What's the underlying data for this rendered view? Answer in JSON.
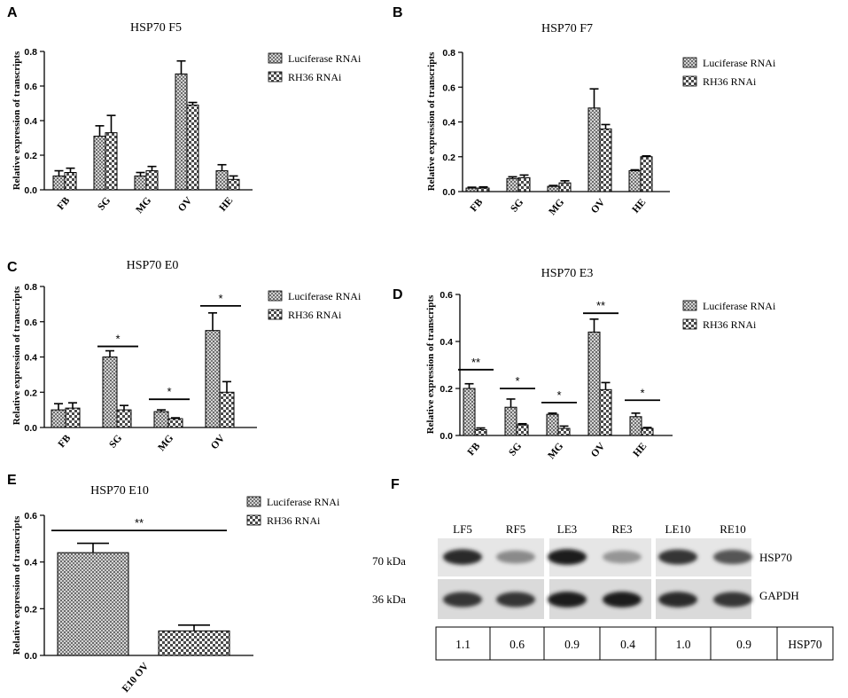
{
  "legend": {
    "series": [
      "Luciferase RNAi",
      "RH36 RNAi"
    ]
  },
  "y_axis_label": "Relative expression of transcripts",
  "chart_data": [
    {
      "panel": "A",
      "type": "bar",
      "title": "HSP70 F5",
      "categories": [
        "FB",
        "SG",
        "MG",
        "OV",
        "HE"
      ],
      "ylim": [
        0,
        0.8
      ],
      "yticks": [
        "0.0",
        "0.2",
        "0.4",
        "0.6",
        "0.8"
      ],
      "series": [
        {
          "name": "Luciferase RNAi",
          "values": [
            0.08,
            0.31,
            0.08,
            0.67,
            0.11
          ],
          "errors": [
            0.03,
            0.06,
            0.02,
            0.075,
            0.035
          ]
        },
        {
          "name": "RH36 RNAi",
          "values": [
            0.1,
            0.33,
            0.11,
            0.49,
            0.06
          ],
          "errors": [
            0.025,
            0.1,
            0.025,
            0.015,
            0.02
          ]
        }
      ],
      "significance": []
    },
    {
      "panel": "B",
      "type": "bar",
      "title": "HSP70 F7",
      "categories": [
        "FB",
        "SG",
        "MG",
        "OV",
        "HE"
      ],
      "ylim": [
        0,
        0.8
      ],
      "yticks": [
        "0.0",
        "0.2",
        "0.4",
        "0.6",
        "0.8"
      ],
      "series": [
        {
          "name": "Luciferase RNAi",
          "values": [
            0.02,
            0.075,
            0.03,
            0.48,
            0.12
          ],
          "errors": [
            0.005,
            0.01,
            0.005,
            0.11,
            0.005
          ]
        },
        {
          "name": "RH36 RNAi",
          "values": [
            0.02,
            0.08,
            0.05,
            0.36,
            0.2
          ],
          "errors": [
            0.007,
            0.015,
            0.012,
            0.025,
            0.005
          ]
        }
      ],
      "significance": []
    },
    {
      "panel": "C",
      "type": "bar",
      "title": "HSP70 E0",
      "categories": [
        "FB",
        "SG",
        "MG",
        "OV"
      ],
      "ylim": [
        0,
        0.8
      ],
      "yticks": [
        "0.0",
        "0.2",
        "0.4",
        "0.6",
        "0.8"
      ],
      "series": [
        {
          "name": "Luciferase RNAi",
          "values": [
            0.1,
            0.4,
            0.09,
            0.55
          ],
          "errors": [
            0.035,
            0.035,
            0.01,
            0.1
          ]
        },
        {
          "name": "RH36 RNAi",
          "values": [
            0.11,
            0.1,
            0.05,
            0.2
          ],
          "errors": [
            0.03,
            0.025,
            0.005,
            0.06
          ]
        }
      ],
      "significance": [
        {
          "category": 1,
          "label": "*",
          "y": 0.46
        },
        {
          "category": 2,
          "label": "*",
          "y": 0.16
        },
        {
          "category": 3,
          "label": "*",
          "y": 0.69
        }
      ]
    },
    {
      "panel": "D",
      "type": "bar",
      "title": "HSP70 E3",
      "categories": [
        "FB",
        "SG",
        "MG",
        "OV",
        "HE"
      ],
      "ylim": [
        0,
        0.6
      ],
      "yticks": [
        "0.0",
        "0.2",
        "0.4",
        "0.6"
      ],
      "series": [
        {
          "name": "Luciferase RNAi",
          "values": [
            0.2,
            0.12,
            0.09,
            0.44,
            0.08
          ],
          "errors": [
            0.02,
            0.035,
            0.005,
            0.055,
            0.015
          ]
        },
        {
          "name": "RH36 RNAi",
          "values": [
            0.025,
            0.045,
            0.03,
            0.195,
            0.03
          ],
          "errors": [
            0.007,
            0.005,
            0.01,
            0.03,
            0.004
          ]
        }
      ],
      "significance": [
        {
          "category": 0,
          "label": "**",
          "y": 0.28
        },
        {
          "category": 1,
          "label": "*",
          "y": 0.2
        },
        {
          "category": 2,
          "label": "*",
          "y": 0.14
        },
        {
          "category": 3,
          "label": "**",
          "y": 0.52
        },
        {
          "category": 4,
          "label": "*",
          "y": 0.15
        }
      ]
    },
    {
      "panel": "E",
      "type": "bar",
      "title": "HSP70 E10",
      "categories": [
        "E10 OV"
      ],
      "ylim": [
        0,
        0.6
      ],
      "yticks": [
        "0.0",
        "0.2",
        "0.4",
        "0.6"
      ],
      "series": [
        {
          "name": "Luciferase RNAi",
          "values": [
            0.44
          ],
          "errors": [
            0.04
          ]
        },
        {
          "name": "RH36 RNAi",
          "values": [
            0.105
          ],
          "errors": [
            0.025
          ]
        }
      ],
      "significance": [
        {
          "category": 0,
          "label": "**",
          "y": 0.535
        }
      ]
    }
  ],
  "western_blot": {
    "panel": "F",
    "lanes": [
      "LF5",
      "RF5",
      "LE3",
      "RE3",
      "LE10",
      "RE10"
    ],
    "markers": [
      "70 kDa",
      "36 kDa"
    ],
    "proteins": [
      "HSP70",
      "GAPDH"
    ],
    "quantification": [
      "1.1",
      "0.6",
      "0.9",
      "0.4",
      "1.0",
      "0.9"
    ],
    "quantification_label": "HSP70",
    "hsp70_band_intensity": [
      0.9,
      0.45,
      0.95,
      0.4,
      0.85,
      0.7
    ],
    "gapdh_band_intensity": [
      0.85,
      0.85,
      0.95,
      0.95,
      0.9,
      0.85
    ]
  }
}
